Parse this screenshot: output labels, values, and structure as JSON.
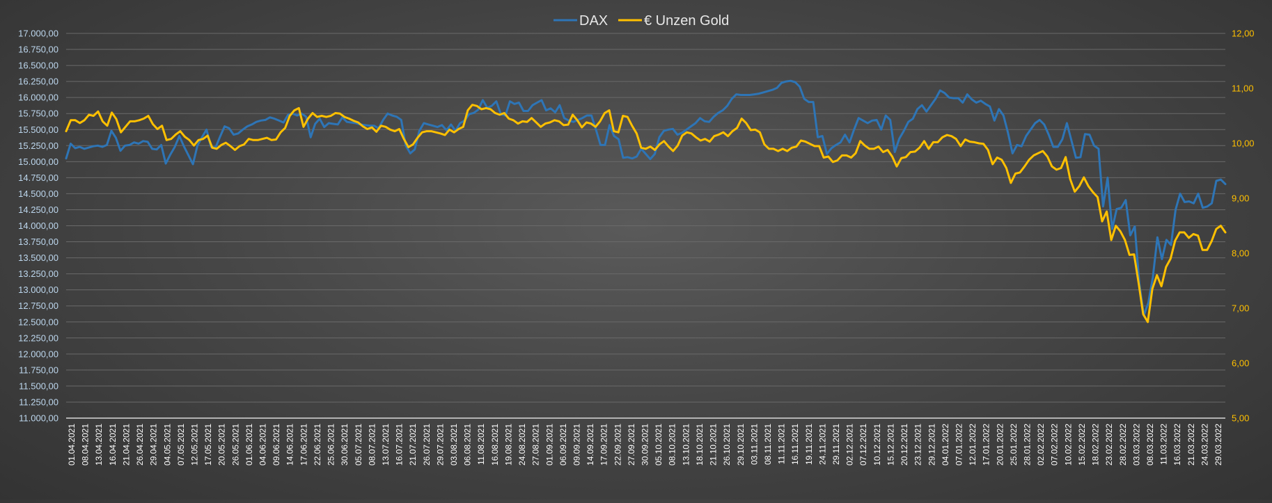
{
  "colors": {
    "dax": "#2E75B6",
    "gold": "#FFC000",
    "grid": "#6a6a6a",
    "axis_text_left": "#BDD7EE",
    "axis_text_right": "#FFC000",
    "x_text": "#FFFFFF",
    "legend_text": "#E8E8E8"
  },
  "chart_data": {
    "type": "line",
    "title": "",
    "legend_position": "top",
    "grid": true,
    "x_tick_labels": [
      "01.04.2021",
      "08.04.2021",
      "13.04.2021",
      "16.04.2021",
      "21.04.2021",
      "26.04.2021",
      "29.04.2021",
      "04.05.2021",
      "07.05.2021",
      "12.05.2021",
      "17.05.2021",
      "20.05.2021",
      "26.05.2021",
      "01.06.2021",
      "04.06.2021",
      "09.06.2021",
      "14.06.2021",
      "17.06.2021",
      "22.06.2021",
      "25.06.2021",
      "30.06.2021",
      "05.07.2021",
      "08.07.2021",
      "13.07.2021",
      "16.07.2021",
      "21.07.2021",
      "26.07.2021",
      "29.07.2021",
      "03.08.2021",
      "06.08.2021",
      "11.08.2021",
      "16.08.2021",
      "19.08.2021",
      "24.08.2021",
      "27.08.2021",
      "01.09.2021",
      "06.09.2021",
      "09.09.2021",
      "14.09.2021",
      "17.09.2021",
      "22.09.2021",
      "27.09.2021",
      "30.09.2021",
      "05.10.2021",
      "08.10.2021",
      "13.10.2021",
      "18.10.2021",
      "21.10.2021",
      "26.10.2021",
      "29.10.2021",
      "03.11.2021",
      "08.11.2021",
      "11.11.2021",
      "16.11.2021",
      "19.11.2021",
      "24.11.2021",
      "29.11.2021",
      "02.12.2021",
      "07.12.2021",
      "10.12.2021",
      "15.12.2021",
      "20.12.2021",
      "23.12.2021",
      "29.12.2021",
      "04.01.2022",
      "07.01.2022",
      "12.01.2022",
      "17.01.2022",
      "20.01.2022",
      "25.01.2022",
      "28.01.2022",
      "02.02.2022",
      "07.02.2022",
      "10.02.2022",
      "15.02.2022",
      "18.02.2022",
      "23.02.2022",
      "28.02.2022",
      "03.03.2022",
      "08.03.2022",
      "11.03.2022",
      "16.03.2022",
      "21.03.2022",
      "24.03.2022",
      "29.03.2022"
    ],
    "y_left": {
      "min": 11000,
      "max": 17000,
      "step": 250,
      "tick_labels": [
        "11.000,00",
        "11.250,00",
        "11.500,00",
        "11.750,00",
        "12.000,00",
        "12.250,00",
        "12.500,00",
        "12.750,00",
        "13.000,00",
        "13.250,00",
        "13.500,00",
        "13.750,00",
        "14.000,00",
        "14.250,00",
        "14.500,00",
        "14.750,00",
        "15.000,00",
        "15.250,00",
        "15.500,00",
        "15.750,00",
        "16.000,00",
        "16.250,00",
        "16.500,00",
        "16.750,00",
        "17.000,00"
      ]
    },
    "y_right": {
      "min": 5,
      "max": 12,
      "step": 1,
      "tick_labels": [
        "5,00",
        "6,00",
        "7,00",
        "8,00",
        "9,00",
        "10,00",
        "11,00",
        "12,00"
      ]
    },
    "series": [
      {
        "name": "DAX",
        "axis": "left",
        "values": [
          15050,
          15280,
          15210,
          15230,
          15200,
          15220,
          15240,
          15250,
          15230,
          15260,
          15480,
          15370,
          15170,
          15250,
          15260,
          15300,
          15280,
          15320,
          15310,
          15200,
          15190,
          15260,
          14970,
          15110,
          15230,
          15400,
          15240,
          15100,
          14960,
          15250,
          15380,
          15500,
          15230,
          15220,
          15390,
          15550,
          15520,
          15420,
          15440,
          15500,
          15550,
          15580,
          15620,
          15640,
          15650,
          15690,
          15670,
          15640,
          15610,
          15730,
          15750,
          15720,
          15750,
          15700,
          15380,
          15590,
          15670,
          15540,
          15600,
          15590,
          15580,
          15690,
          15620,
          15610,
          15600,
          15580,
          15570,
          15560,
          15560,
          15520,
          15650,
          15750,
          15720,
          15700,
          15650,
          15250,
          15130,
          15190,
          15480,
          15600,
          15580,
          15560,
          15540,
          15570,
          15490,
          15580,
          15480,
          15600,
          15640,
          15740,
          15760,
          15810,
          15960,
          15840,
          15870,
          15940,
          15740,
          15720,
          15940,
          15900,
          15920,
          15790,
          15790,
          15880,
          15920,
          15960,
          15800,
          15830,
          15770,
          15880,
          15680,
          15640,
          15620,
          15650,
          15680,
          15720,
          15720,
          15500,
          15260,
          15260,
          15570,
          15400,
          15350,
          15060,
          15070,
          15050,
          15080,
          15200,
          15120,
          15040,
          15120,
          15380,
          15480,
          15500,
          15510,
          15420,
          15450,
          15500,
          15550,
          15600,
          15680,
          15630,
          15620,
          15700,
          15760,
          15800,
          15870,
          15980,
          16050,
          16040,
          16040,
          16040,
          16050,
          16060,
          16080,
          16100,
          16120,
          16150,
          16230,
          16250,
          16260,
          16240,
          16170,
          15980,
          15930,
          15930,
          15380,
          15400,
          15120,
          15210,
          15260,
          15300,
          15420,
          15300,
          15500,
          15680,
          15640,
          15600,
          15640,
          15650,
          15500,
          15720,
          15650,
          15150,
          15360,
          15480,
          15620,
          15670,
          15820,
          15880,
          15780,
          15880,
          15980,
          16110,
          16070,
          16000,
          15990,
          15990,
          15920,
          16050,
          15970,
          15920,
          15950,
          15900,
          15860,
          15640,
          15820,
          15720,
          15450,
          15130,
          15260,
          15240,
          15400,
          15500,
          15600,
          15650,
          15580,
          15420,
          15230,
          15230,
          15350,
          15600,
          15330,
          15060,
          15070,
          15430,
          15420,
          15250,
          15200,
          14300,
          14750,
          13950,
          14260,
          14280,
          14400,
          13850,
          13990,
          13100,
          12600,
          12800,
          13200,
          13820,
          13480,
          13780,
          13700,
          14250,
          14500,
          14370,
          14380,
          14350,
          14500,
          14280,
          14300,
          14350,
          14700,
          14720,
          14650
        ]
      },
      {
        "name": "€ Unzen Gold",
        "axis": "right",
        "values": [
          10.22,
          10.42,
          10.42,
          10.37,
          10.42,
          10.52,
          10.5,
          10.58,
          10.4,
          10.32,
          10.56,
          10.44,
          10.2,
          10.3,
          10.4,
          10.4,
          10.42,
          10.45,
          10.5,
          10.35,
          10.26,
          10.32,
          10.06,
          10.08,
          10.16,
          10.22,
          10.12,
          10.06,
          9.96,
          10.06,
          10.08,
          10.14,
          9.92,
          9.9,
          9.97,
          10.01,
          9.95,
          9.88,
          9.95,
          9.98,
          10.08,
          10.06,
          10.06,
          10.08,
          10.1,
          10.06,
          10.07,
          10.2,
          10.28,
          10.5,
          10.6,
          10.64,
          10.3,
          10.45,
          10.55,
          10.48,
          10.5,
          10.48,
          10.5,
          10.55,
          10.54,
          10.48,
          10.45,
          10.41,
          10.38,
          10.31,
          10.26,
          10.29,
          10.21,
          10.32,
          10.3,
          10.25,
          10.22,
          10.26,
          10.08,
          9.93,
          9.98,
          10.1,
          10.2,
          10.22,
          10.22,
          10.2,
          10.18,
          10.15,
          10.25,
          10.2,
          10.26,
          10.3,
          10.6,
          10.7,
          10.68,
          10.62,
          10.64,
          10.62,
          10.55,
          10.52,
          10.55,
          10.45,
          10.42,
          10.36,
          10.4,
          10.39,
          10.46,
          10.38,
          10.3,
          10.36,
          10.38,
          10.42,
          10.4,
          10.33,
          10.34,
          10.52,
          10.42,
          10.29,
          10.38,
          10.36,
          10.3,
          10.4,
          10.55,
          10.6,
          10.22,
          10.2,
          10.5,
          10.48,
          10.32,
          10.18,
          9.92,
          9.9,
          9.94,
          9.88,
          9.98,
          10.04,
          9.94,
          9.86,
          9.96,
          10.14,
          10.2,
          10.18,
          10.11,
          10.05,
          10.08,
          10.03,
          10.13,
          10.16,
          10.2,
          10.13,
          10.22,
          10.28,
          10.45,
          10.37,
          10.24,
          10.25,
          10.2,
          9.98,
          9.9,
          9.9,
          9.86,
          9.9,
          9.86,
          9.92,
          9.94,
          10.05,
          10.03,
          9.99,
          9.95,
          9.95,
          9.74,
          9.76,
          9.66,
          9.69,
          9.78,
          9.78,
          9.74,
          9.82,
          10.04,
          9.96,
          9.9,
          9.9,
          9.94,
          9.84,
          9.88,
          9.76,
          9.58,
          9.73,
          9.75,
          9.84,
          9.85,
          9.92,
          10.04,
          9.9,
          10.02,
          10.02,
          10.11,
          10.15,
          10.13,
          10.08,
          9.95,
          10.07,
          10.03,
          10.02,
          10.0,
          9.99,
          9.88,
          9.62,
          9.74,
          9.7,
          9.55,
          9.28,
          9.45,
          9.47,
          9.58,
          9.7,
          9.78,
          9.82,
          9.86,
          9.76,
          9.58,
          9.52,
          9.55,
          9.75,
          9.35,
          9.12,
          9.22,
          9.38,
          9.22,
          9.11,
          9.02,
          8.58,
          8.76,
          8.24,
          8.5,
          8.4,
          8.24,
          7.97,
          7.98,
          7.45,
          6.89,
          6.75,
          7.35,
          7.6,
          7.4,
          7.75,
          7.9,
          8.23,
          8.38,
          8.38,
          8.28,
          8.35,
          8.32,
          8.06,
          8.06,
          8.22,
          8.44,
          8.5,
          8.38
        ]
      }
    ]
  }
}
